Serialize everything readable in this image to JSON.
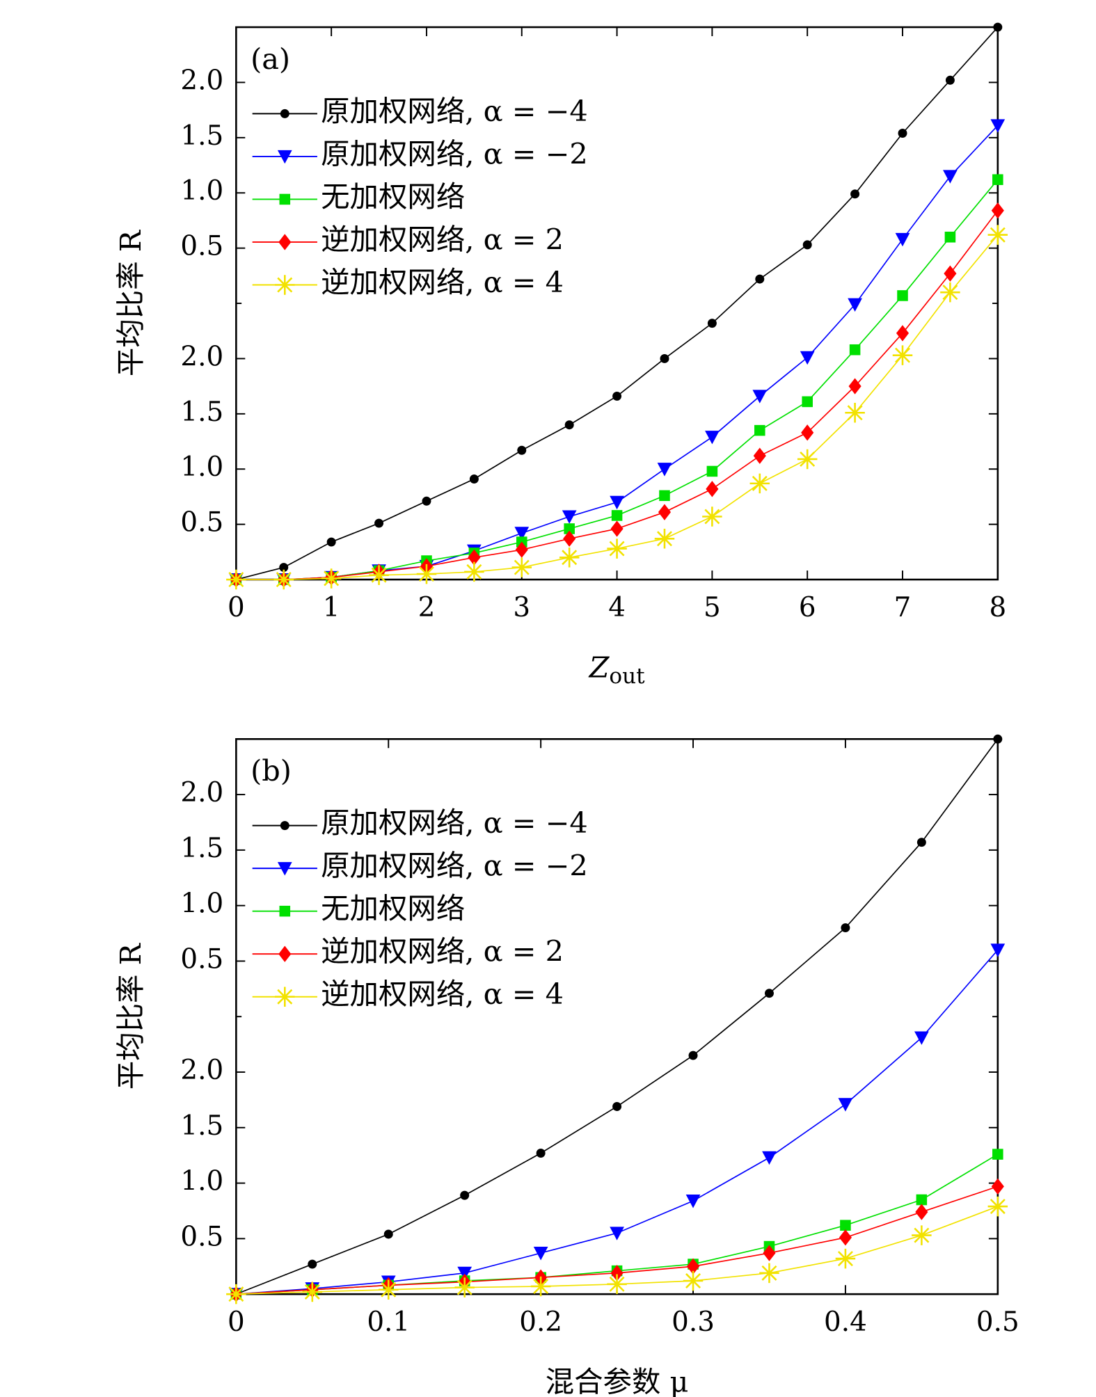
{
  "chart_data": [
    {
      "type": "line",
      "panel_label": "(a)",
      "ylabel": "平均比率 R",
      "xlabel": {
        "main": "Z",
        "sub": "out"
      },
      "xlim": [
        0,
        8
      ],
      "ylim": [
        0,
        5
      ],
      "xticks": [
        0,
        1,
        2,
        3,
        4,
        5,
        6,
        7,
        8
      ],
      "yticks": [
        0.5,
        {
          "value": 1,
          "label": "1.0"
        },
        1.5,
        {
          "value": 2,
          "label": "2.0"
        },
        {
          "value": 3,
          "label": "0.5"
        },
        {
          "value": 3.5,
          "label": "1.0"
        },
        {
          "value": 4,
          "label": "1.5"
        },
        {
          "value": 4.5,
          "label": "2.0"
        }
      ],
      "yminorticks": [
        2.5
      ],
      "x": [
        0,
        0.5,
        1,
        1.5,
        2,
        2.5,
        3,
        3.5,
        4,
        4.5,
        5,
        5.5,
        6,
        6.5,
        7,
        7.5,
        8
      ],
      "series": [
        {
          "name": "原加权网络, α = −4",
          "color": "#000000",
          "marker": "circle",
          "values": [
            0,
            0.11,
            0.34,
            0.51,
            0.71,
            0.91,
            1.17,
            1.4,
            1.66,
            2.0,
            2.32,
            2.72,
            3.03,
            3.49,
            4.04,
            4.52,
            5.0
          ]
        },
        {
          "name": "原加权网络, α = −2",
          "color": "#0000ff",
          "marker": "triangle-down",
          "values": [
            0,
            0,
            0.02,
            0.08,
            0.12,
            0.26,
            0.42,
            0.57,
            0.7,
            1.0,
            1.29,
            1.66,
            2.01,
            2.49,
            3.08,
            3.65,
            4.11
          ]
        },
        {
          "name": "无加权网络",
          "color": "#00e000",
          "marker": "square",
          "values": [
            0,
            0,
            0.02,
            0.08,
            0.17,
            0.24,
            0.34,
            0.46,
            0.58,
            0.76,
            0.98,
            1.35,
            1.61,
            2.08,
            2.57,
            3.1,
            3.62
          ]
        },
        {
          "name": "逆加权网络, α = 2",
          "color": "#ff0000",
          "marker": "diamond",
          "values": [
            0,
            0,
            0.02,
            0.07,
            0.12,
            0.2,
            0.27,
            0.37,
            0.46,
            0.61,
            0.82,
            1.12,
            1.33,
            1.75,
            2.23,
            2.77,
            3.34
          ]
        },
        {
          "name": "逆加权网络, α = 4",
          "color": "#f2e200",
          "marker": "star",
          "values": [
            0,
            0,
            0.01,
            0.04,
            0.05,
            0.07,
            0.11,
            0.2,
            0.28,
            0.37,
            0.57,
            0.87,
            1.09,
            1.51,
            2.03,
            2.6,
            3.12
          ]
        }
      ]
    },
    {
      "type": "line",
      "panel_label": "(b)",
      "ylabel": "平均比率 R",
      "xlabel": {
        "main": "混合参数 μ"
      },
      "xlim": [
        0,
        0.5
      ],
      "ylim": [
        0,
        5
      ],
      "xticks": [
        0,
        0.1,
        0.2,
        0.3,
        0.4,
        0.5
      ],
      "yticks": [
        0.5,
        {
          "value": 1,
          "label": "1.0"
        },
        1.5,
        {
          "value": 2,
          "label": "2.0"
        },
        {
          "value": 3,
          "label": "0.5"
        },
        {
          "value": 3.5,
          "label": "1.0"
        },
        {
          "value": 4,
          "label": "1.5"
        },
        {
          "value": 4.5,
          "label": "2.0"
        }
      ],
      "yminorticks": [
        2.5
      ],
      "x": [
        0,
        0.05,
        0.1,
        0.15,
        0.2,
        0.25,
        0.3,
        0.35,
        0.4,
        0.45,
        0.5
      ],
      "series": [
        {
          "name": "原加权网络, α = −4",
          "color": "#000000",
          "marker": "circle",
          "values": [
            0,
            0.27,
            0.54,
            0.89,
            1.27,
            1.69,
            2.15,
            2.71,
            3.3,
            4.07,
            5.0
          ]
        },
        {
          "name": "原加权网络, α = −2",
          "color": "#0000ff",
          "marker": "triangle-down",
          "values": [
            0,
            0.05,
            0.11,
            0.19,
            0.37,
            0.55,
            0.84,
            1.23,
            1.71,
            2.31,
            3.1
          ]
        },
        {
          "name": "无加权网络",
          "color": "#00e000",
          "marker": "square",
          "values": [
            0,
            0.04,
            0.08,
            0.12,
            0.15,
            0.21,
            0.27,
            0.43,
            0.62,
            0.85,
            1.26
          ]
        },
        {
          "name": "逆加权网络, α = 2",
          "color": "#ff0000",
          "marker": "diamond",
          "values": [
            0,
            0.04,
            0.08,
            0.11,
            0.15,
            0.19,
            0.25,
            0.37,
            0.51,
            0.74,
            0.97
          ]
        },
        {
          "name": "逆加权网络, α = 4",
          "color": "#f2e200",
          "marker": "star",
          "values": [
            0,
            0.02,
            0.04,
            0.06,
            0.07,
            0.09,
            0.12,
            0.19,
            0.32,
            0.53,
            0.79
          ]
        }
      ]
    }
  ]
}
